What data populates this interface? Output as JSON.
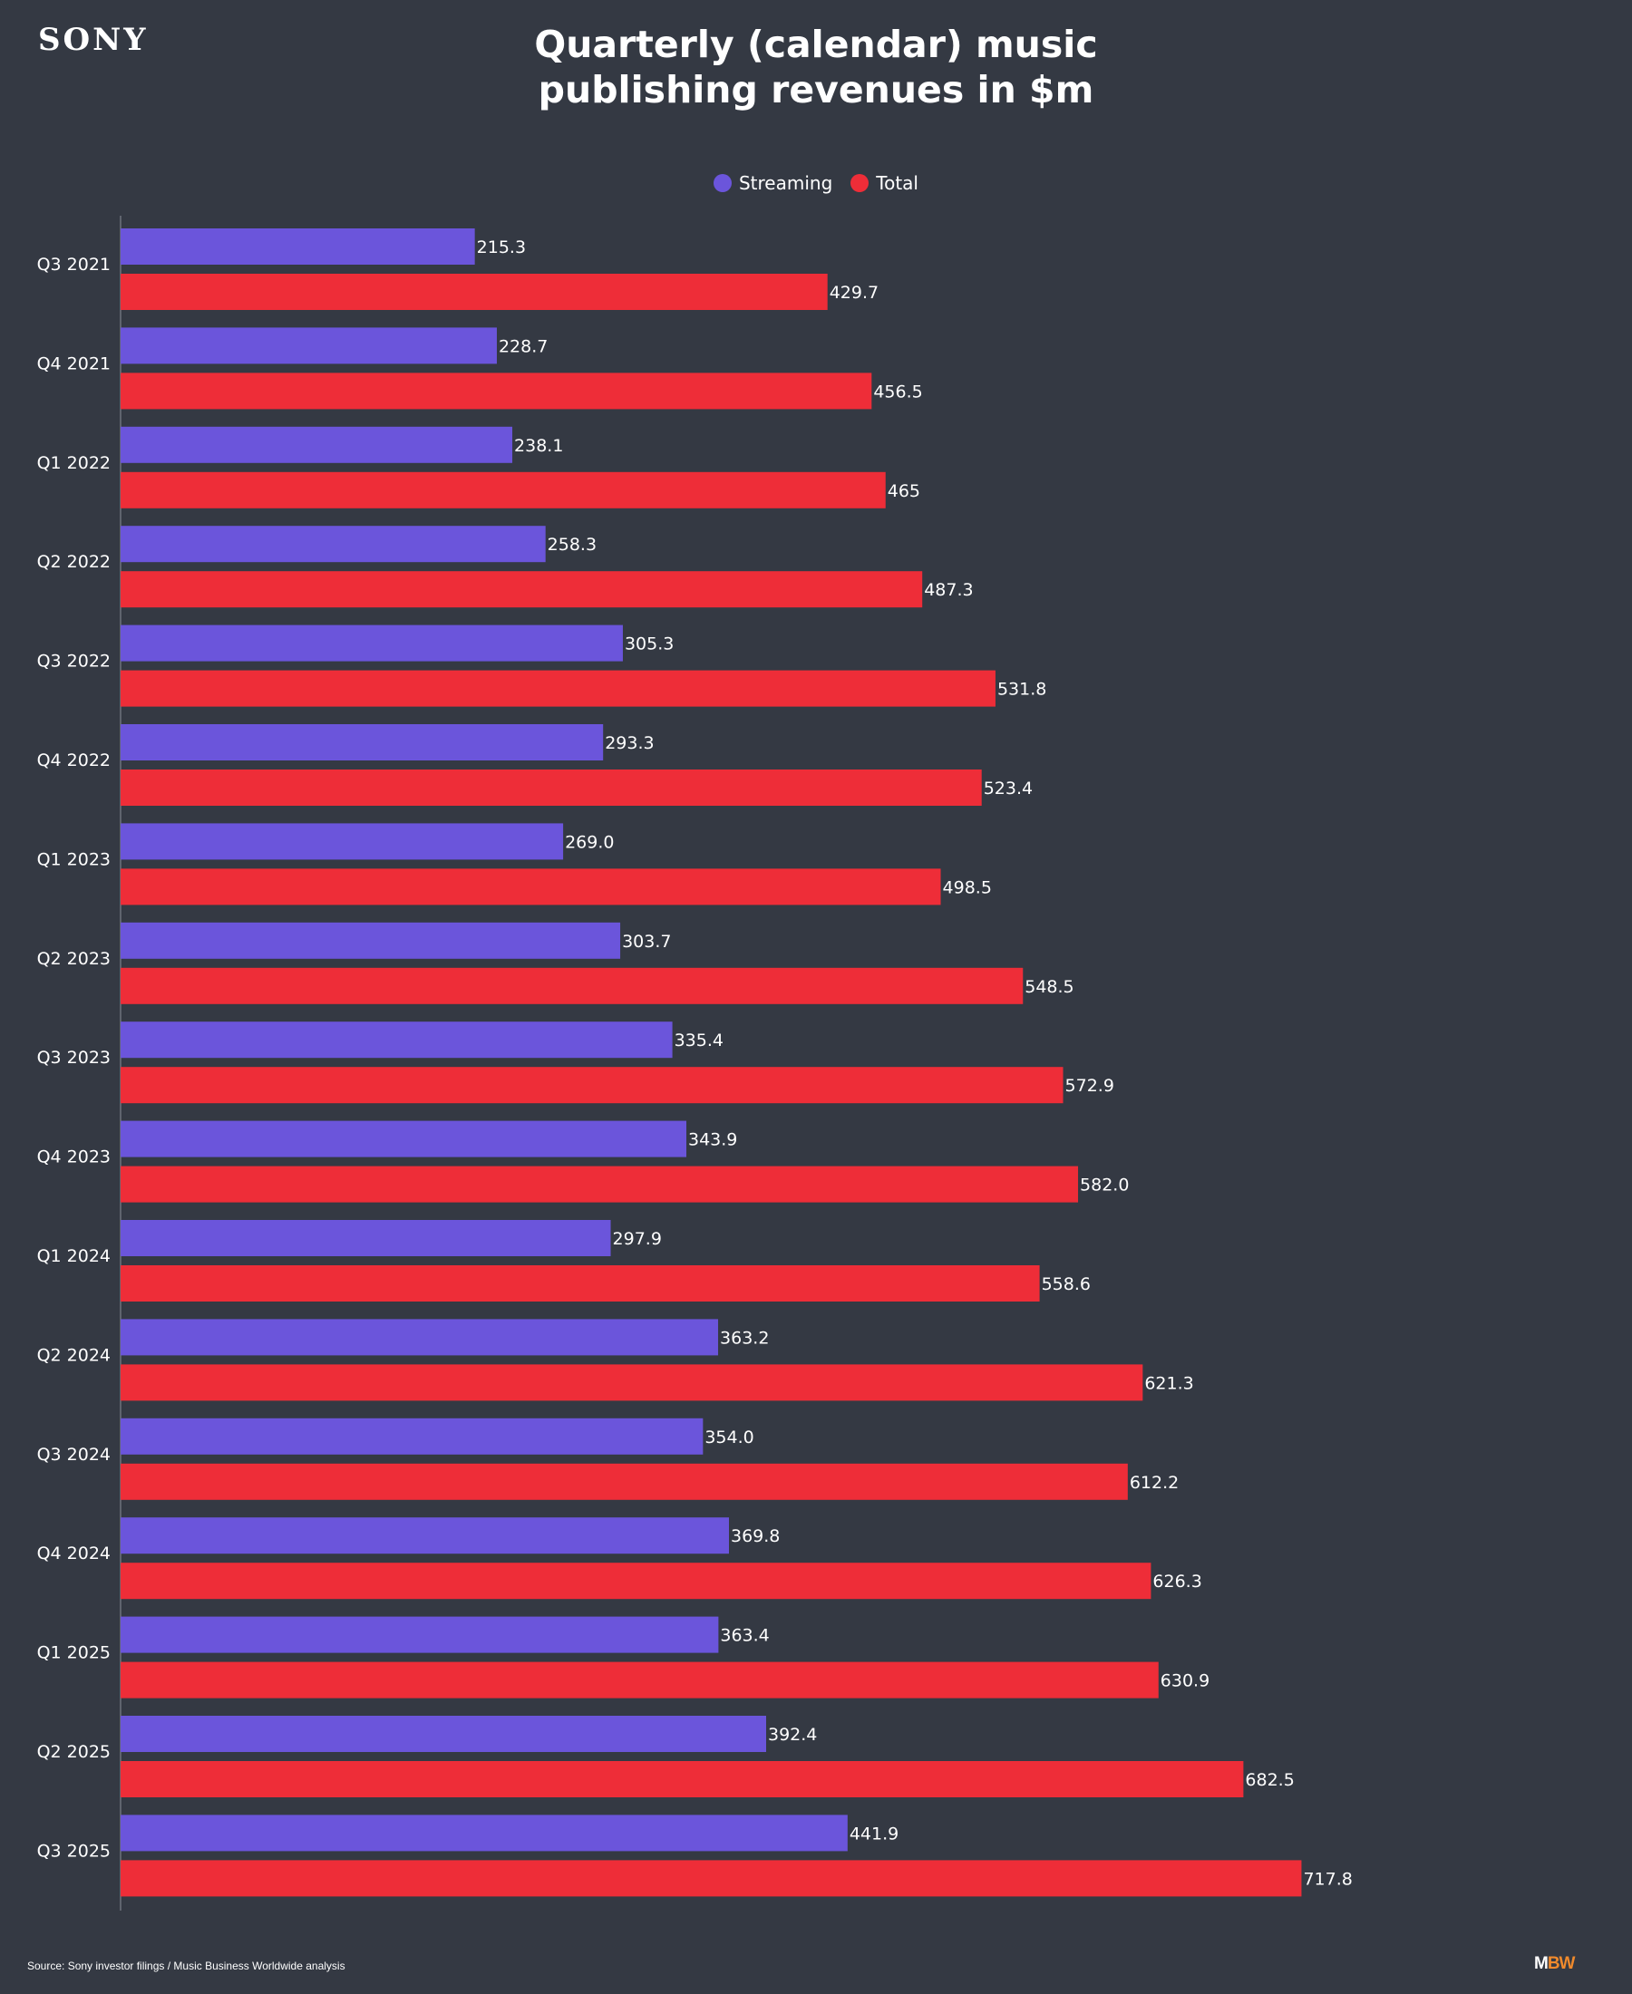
{
  "brand": {
    "logo": "SONY",
    "publisher_mark_m": "M",
    "publisher_mark_bw": "BW"
  },
  "header": {
    "title_line1": "Quarterly (calendar) music",
    "title_line2": "publishing revenues in $m"
  },
  "footer": {
    "source": "Source: Sony investor filings / Music Business Worldwide analysis"
  },
  "colors": {
    "background": "#343943",
    "streaming": "#6b55db",
    "total": "#ee2d38",
    "accent": "#f08a2c"
  },
  "chart_data": {
    "type": "bar",
    "orientation": "horizontal",
    "categories": [
      "Q3 2021",
      "Q4 2021",
      "Q1 2022",
      "Q2 2022",
      "Q3 2022",
      "Q4 2022",
      "Q1 2023",
      "Q2 2023",
      "Q3 2023",
      "Q4 2023",
      "Q1 2024",
      "Q2 2024",
      "Q3 2024",
      "Q4 2024",
      "Q1 2025",
      "Q2 2025",
      "Q3 2025"
    ],
    "series": [
      {
        "name": "Streaming",
        "color": "#6b55db",
        "values": [
          215.3,
          228.7,
          238.1,
          258.3,
          305.3,
          293.3,
          269.0,
          303.7,
          335.4,
          343.9,
          297.9,
          363.2,
          354.0,
          369.8,
          363.4,
          392.4,
          441.9
        ],
        "labels": [
          "215.3",
          "228.7",
          "238.1",
          "258.3",
          "305.3",
          "293.3",
          "269.0",
          "303.7",
          "335.4",
          "343.9",
          "297.9",
          "363.2",
          "354.0",
          "369.8",
          "363.4",
          "392.4",
          "441.9"
        ]
      },
      {
        "name": "Total",
        "color": "#ee2d38",
        "values": [
          429.7,
          456.5,
          465,
          487.3,
          531.8,
          523.4,
          498.5,
          548.5,
          572.9,
          582.0,
          558.6,
          621.3,
          612.2,
          626.3,
          630.9,
          682.5,
          717.8
        ],
        "labels": [
          "429.7",
          "456.5",
          "465",
          "487.3",
          "531.8",
          "523.4",
          "498.5",
          "548.5",
          "572.9",
          "582.0",
          "558.6",
          "621.3",
          "612.2",
          "626.3",
          "630.9",
          "682.5",
          "717.8"
        ]
      }
    ],
    "title": "Quarterly (calendar) music publishing revenues in $m",
    "xlim": [
      0,
      800
    ],
    "grid": false,
    "legend_position": "top-center"
  }
}
